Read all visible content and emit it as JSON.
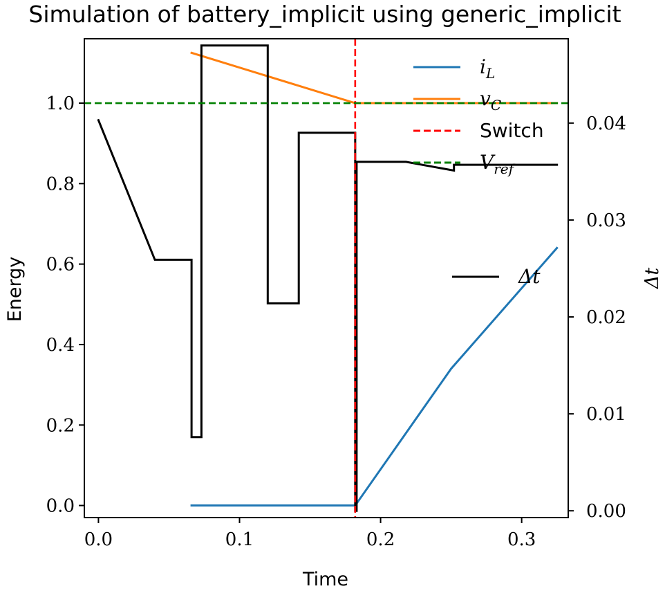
{
  "chart_data": {
    "type": "line",
    "title": "Simulation of battery_implicit using generic_implicit",
    "xlabel": "Time",
    "ylabel": "Energy",
    "ylabel_right": "Δt",
    "xlim": [
      -0.01,
      0.333
    ],
    "ylim": [
      -0.03,
      1.16
    ],
    "ylim_right": [
      -0.0007,
      0.0487
    ],
    "xticks": [
      0.0,
      0.1,
      0.2,
      0.3
    ],
    "xtick_labels": [
      "0.0",
      "0.1",
      "0.2",
      "0.3"
    ],
    "yticks": [
      0.0,
      0.2,
      0.4,
      0.6,
      0.8,
      1.0
    ],
    "ytick_labels": [
      "0.0",
      "0.2",
      "0.4",
      "0.6",
      "0.8",
      "1.0"
    ],
    "yticks_right": [
      0.0,
      0.01,
      0.02,
      0.03,
      0.04
    ],
    "ytick_labels_right": [
      "0.00",
      "0.01",
      "0.02",
      "0.03",
      "0.04"
    ],
    "grid": false,
    "series": [
      {
        "name": "i_L",
        "axis": "left",
        "color": "#1f77b4",
        "style": "solid",
        "x": [
          0.066,
          0.1,
          0.15,
          0.182,
          0.25,
          0.325
        ],
        "y": [
          0.0,
          0.0,
          0.0,
          0.0,
          0.34,
          0.64
        ]
      },
      {
        "name": "v_C",
        "axis": "left",
        "color": "#ff7f0e",
        "style": "solid",
        "x": [
          0.066,
          0.182,
          0.325
        ],
        "y": [
          1.125,
          1.0,
          1.0
        ]
      },
      {
        "name": "Δt",
        "axis": "right",
        "color": "#000000",
        "style": "solid",
        "x": [
          0.0,
          0.04,
          0.066,
          0.066,
          0.073,
          0.073,
          0.12,
          0.12,
          0.142,
          0.142,
          0.182,
          0.182,
          0.183,
          0.183,
          0.218,
          0.252,
          0.252,
          0.325
        ],
        "y": [
          0.0403,
          0.0259,
          0.0259,
          0.0076,
          0.0076,
          0.048,
          0.048,
          0.0214,
          0.0214,
          0.039,
          0.039,
          0.0,
          0.0,
          0.036,
          0.036,
          0.0351,
          0.0357,
          0.0357
        ]
      }
    ],
    "reference_lines": [
      {
        "name": "Switch",
        "orientation": "vertical",
        "value": 0.182,
        "color": "#ff0000",
        "style": "dashed"
      },
      {
        "name": "V_ref",
        "orientation": "horizontal",
        "value": 1.0,
        "color": "#008000",
        "style": "dashed"
      }
    ],
    "legend": {
      "placement": "top-right",
      "entries": [
        {
          "main": "i",
          "sub": "L",
          "math": true,
          "color": "#1f77b4",
          "style": "solid"
        },
        {
          "main": "v",
          "sub": "C",
          "math": true,
          "color": "#ff7f0e",
          "style": "solid"
        },
        {
          "main": "Switch",
          "sub": "",
          "math": false,
          "color": "#ff0000",
          "style": "dashed"
        },
        {
          "main": "V",
          "sub": "ref",
          "math": true,
          "color": "#008000",
          "style": "dashed"
        }
      ]
    },
    "legend_right": {
      "placement": "center-right",
      "entries": [
        {
          "main": "Δt",
          "sub": "",
          "math": true,
          "color": "#000000",
          "style": "solid"
        }
      ]
    }
  }
}
